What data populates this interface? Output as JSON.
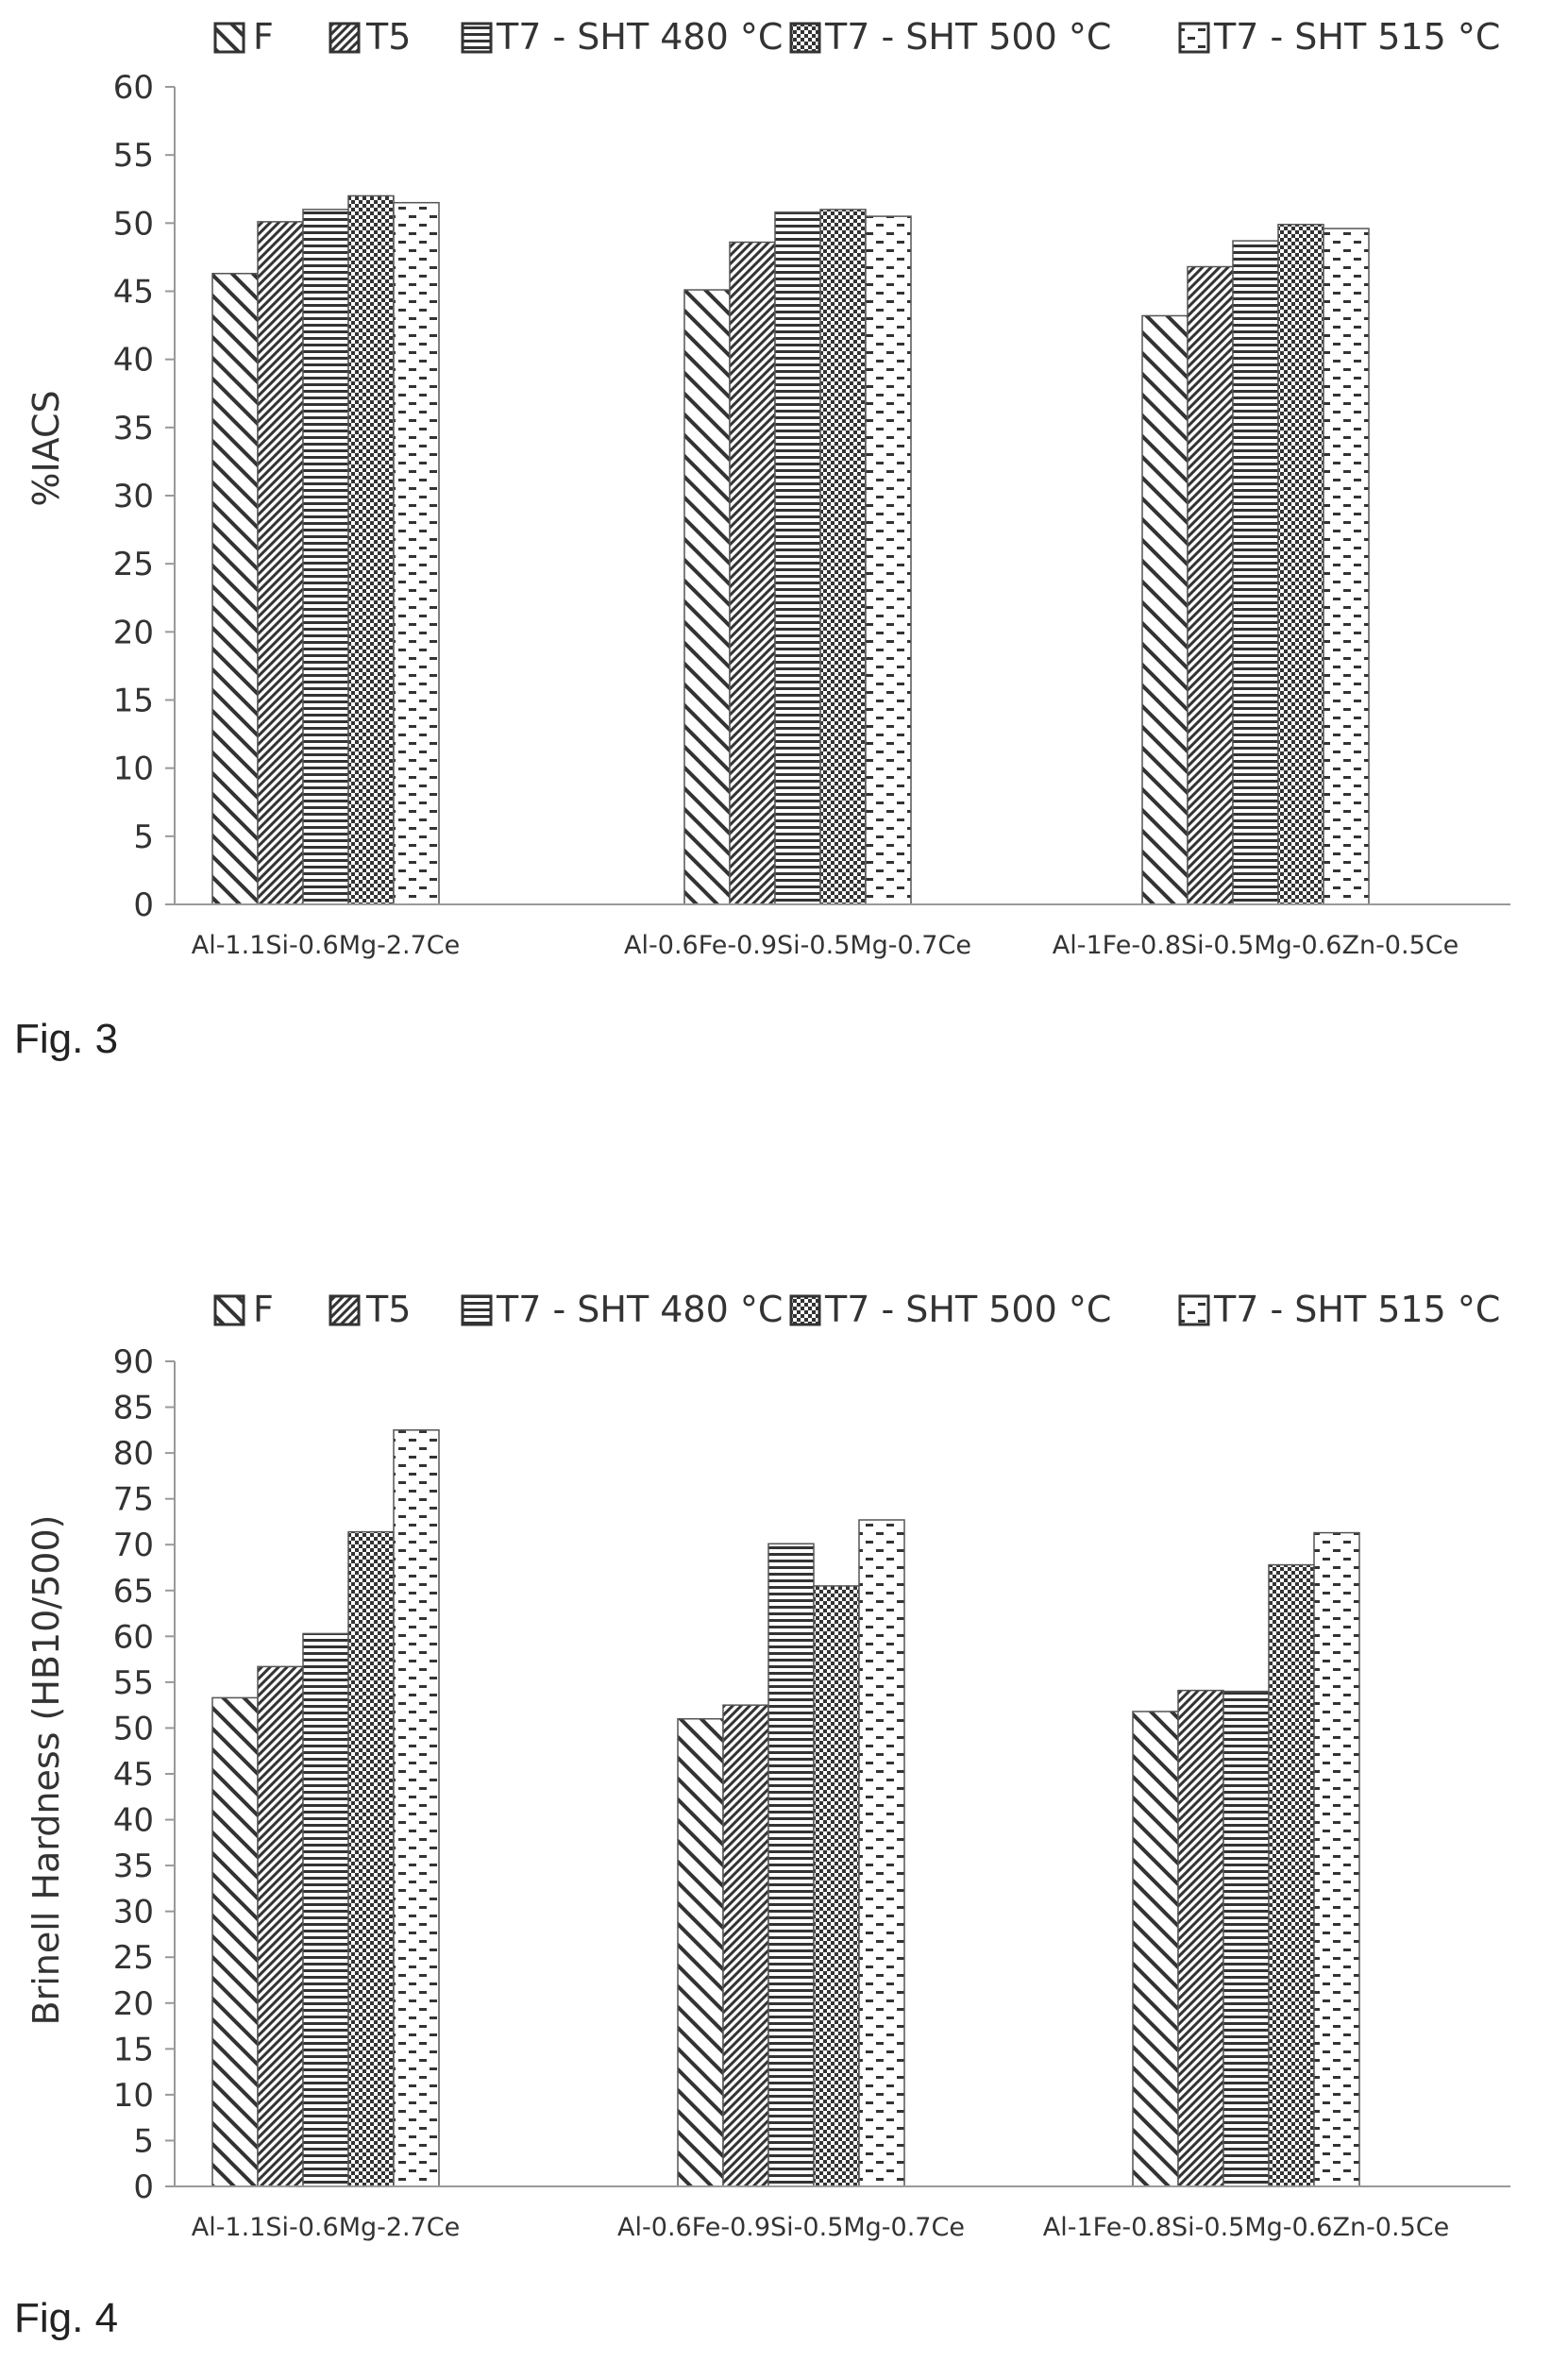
{
  "chart_data": [
    {
      "type": "bar",
      "figure_label": "Fig. 3",
      "ylabel": "%IACS",
      "xlabel": "",
      "ylim": [
        0,
        60
      ],
      "ytick_step": 5,
      "yticks": [
        "0",
        "5",
        "10",
        "15",
        "20",
        "25",
        "30",
        "35",
        "40",
        "45",
        "50",
        "55",
        "60"
      ],
      "legend_position": "top",
      "categories": [
        "Al-1.1Si-0.6Mg-2.7Ce",
        "Al-0.6Fe-0.9Si-0.5Mg-0.7Ce",
        "Al-1Fe-0.8Si-0.5Mg-0.6Zn-0.5Ce"
      ],
      "series": [
        {
          "name": "F",
          "pattern": "diagonal",
          "values": [
            46.3,
            45.1,
            43.2
          ]
        },
        {
          "name": "T5",
          "pattern": "dense-diagonal",
          "values": [
            50.1,
            48.6,
            46.8
          ]
        },
        {
          "name": "T7 - SHT 480 °C",
          "pattern": "horizontal",
          "values": [
            51.0,
            50.8,
            48.7
          ]
        },
        {
          "name": "T7 - SHT 500 °C",
          "pattern": "crosshatch",
          "values": [
            52.0,
            51.0,
            49.9
          ]
        },
        {
          "name": "T7 - SHT 515 °C",
          "pattern": "dashes",
          "values": [
            51.5,
            50.5,
            49.6
          ]
        }
      ]
    },
    {
      "type": "bar",
      "figure_label": "Fig. 4",
      "ylabel": "Brinell Hardness (HB10/500)",
      "xlabel": "",
      "ylim": [
        0,
        90
      ],
      "ytick_step": 5,
      "yticks": [
        "0",
        "5",
        "10",
        "15",
        "20",
        "25",
        "30",
        "35",
        "40",
        "45",
        "50",
        "55",
        "60",
        "65",
        "70",
        "75",
        "80",
        "85",
        "90"
      ],
      "legend_position": "top",
      "categories": [
        "Al-1.1Si-0.6Mg-2.7Ce",
        "Al-0.6Fe-0.9Si-0.5Mg-0.7Ce",
        "Al-1Fe-0.8Si-0.5Mg-0.6Zn-0.5Ce"
      ],
      "series": [
        {
          "name": "F",
          "pattern": "diagonal",
          "values": [
            53.3,
            51.0,
            51.8
          ]
        },
        {
          "name": "T5",
          "pattern": "dense-diagonal",
          "values": [
            56.7,
            52.5,
            54.1
          ]
        },
        {
          "name": "T7 - SHT 480 °C",
          "pattern": "horizontal",
          "values": [
            60.3,
            70.1,
            54.0
          ]
        },
        {
          "name": "T7 - SHT 500 °C",
          "pattern": "crosshatch",
          "values": [
            71.4,
            65.5,
            67.8
          ]
        },
        {
          "name": "T7 - SHT 515 °C",
          "pattern": "dashes",
          "values": [
            82.5,
            72.7,
            71.3
          ]
        }
      ]
    }
  ]
}
